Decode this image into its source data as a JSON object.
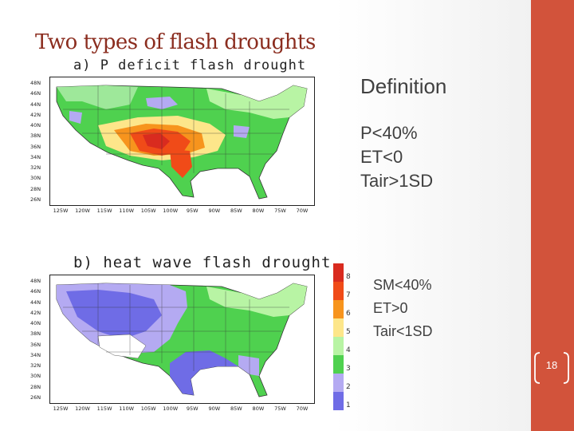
{
  "slide": {
    "title": "Two types of flash droughts",
    "definition_heading": "Definition",
    "criteria_p": [
      "P<40%",
      "ET<0",
      "Tair>1SD"
    ],
    "criteria_hw": [
      "SM<40%",
      "ET>0",
      "Tair<1SD"
    ],
    "page_number": "18"
  },
  "colors": {
    "accent_bar": "#d2533b",
    "title_color": "#8b2d1f"
  },
  "maps": [
    {
      "label": "a)  P  deficit  flash  drought",
      "lat_labels": [
        "48N",
        "46N",
        "44N",
        "42N",
        "40N",
        "38N",
        "36N",
        "34N",
        "32N",
        "30N",
        "28N",
        "26N"
      ],
      "lon_labels": [
        "125W",
        "120W",
        "115W",
        "110W",
        "105W",
        "100W",
        "95W",
        "90W",
        "85W",
        "80W",
        "75W",
        "70W"
      ]
    },
    {
      "label": "b)  heat  wave  flash  drought",
      "lat_labels": [
        "48N",
        "46N",
        "44N",
        "42N",
        "40N",
        "38N",
        "36N",
        "34N",
        "32N",
        "30N",
        "28N",
        "26N"
      ],
      "lon_labels": [
        "125W",
        "120W",
        "115W",
        "110W",
        "105W",
        "100W",
        "95W",
        "90W",
        "85W",
        "80W",
        "75W",
        "70W"
      ]
    }
  ],
  "legend": {
    "bins": [
      {
        "label": "8",
        "color": "#d92b1f"
      },
      {
        "label": "7",
        "color": "#f04b18"
      },
      {
        "label": "6",
        "color": "#f7941d"
      },
      {
        "label": "5",
        "color": "#fde68a"
      },
      {
        "label": "4",
        "color": "#b8f4a4"
      },
      {
        "label": "3",
        "color": "#4fd14f"
      },
      {
        "label": "2",
        "color": "#b4aaf2"
      },
      {
        "label": "1",
        "color": "#6f6ce6"
      }
    ]
  }
}
